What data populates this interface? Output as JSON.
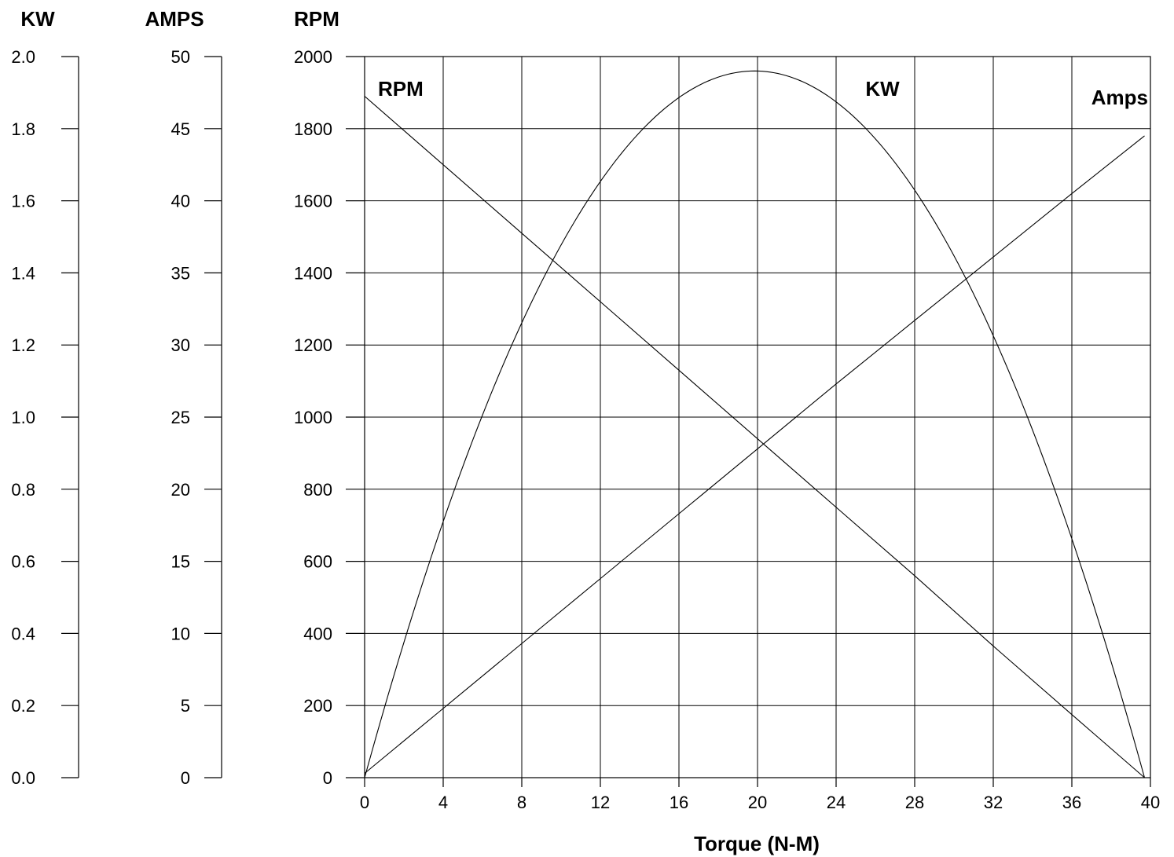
{
  "chart_data": {
    "type": "line",
    "xlabel": "Torque (N-M)",
    "x_ticks": [
      0,
      4,
      8,
      12,
      16,
      20,
      24,
      28,
      32,
      36,
      40
    ],
    "xlim": [
      0,
      40
    ],
    "axes": {
      "kw": {
        "title": "KW",
        "ticks": [
          "2.0",
          "1.8",
          "1.6",
          "1.4",
          "1.2",
          "1.0",
          "0.8",
          "0.6",
          "0.4",
          "0.2",
          "0.0"
        ],
        "ylim": [
          0,
          2.0
        ]
      },
      "amps": {
        "title": "AMPS",
        "ticks": [
          "50",
          "45",
          "40",
          "35",
          "30",
          "25",
          "20",
          "15",
          "10",
          "5",
          "0"
        ],
        "ylim": [
          0,
          50
        ]
      },
      "rpm": {
        "title": "RPM",
        "ticks": [
          "2000",
          "1800",
          "1600",
          "1400",
          "1200",
          "1000",
          "800",
          "600",
          "400",
          "200",
          "0"
        ],
        "ylim": [
          0,
          2000
        ]
      }
    },
    "grid": true,
    "series": [
      {
        "name": "RPM",
        "axis": "rpm",
        "x": [
          0,
          4,
          8,
          12,
          16,
          20,
          24,
          28,
          32,
          36,
          39.7
        ],
        "y": [
          1890,
          1700,
          1510,
          1320,
          1130,
          940,
          750,
          560,
          365,
          175,
          0
        ]
      },
      {
        "name": "Amps",
        "axis": "amps",
        "x": [
          0,
          4,
          8,
          12,
          16,
          20,
          24,
          28,
          32,
          36,
          39.7
        ],
        "y": [
          0.3,
          4.8,
          9.3,
          13.8,
          18.3,
          22.8,
          27.3,
          31.7,
          36.1,
          40.5,
          44.5
        ]
      },
      {
        "name": "KW",
        "axis": "kw",
        "x": [
          0,
          2,
          4,
          6,
          8,
          10,
          12,
          14,
          16,
          18,
          20,
          22,
          24,
          26,
          28,
          30,
          32,
          34,
          36,
          38,
          39.7
        ],
        "y": [
          0.0,
          0.373,
          0.707,
          1.001,
          1.256,
          1.472,
          1.648,
          1.785,
          1.883,
          1.941,
          1.96,
          1.941,
          1.883,
          1.785,
          1.648,
          1.472,
          1.256,
          1.001,
          0.707,
          0.373,
          0.0
        ]
      }
    ]
  }
}
